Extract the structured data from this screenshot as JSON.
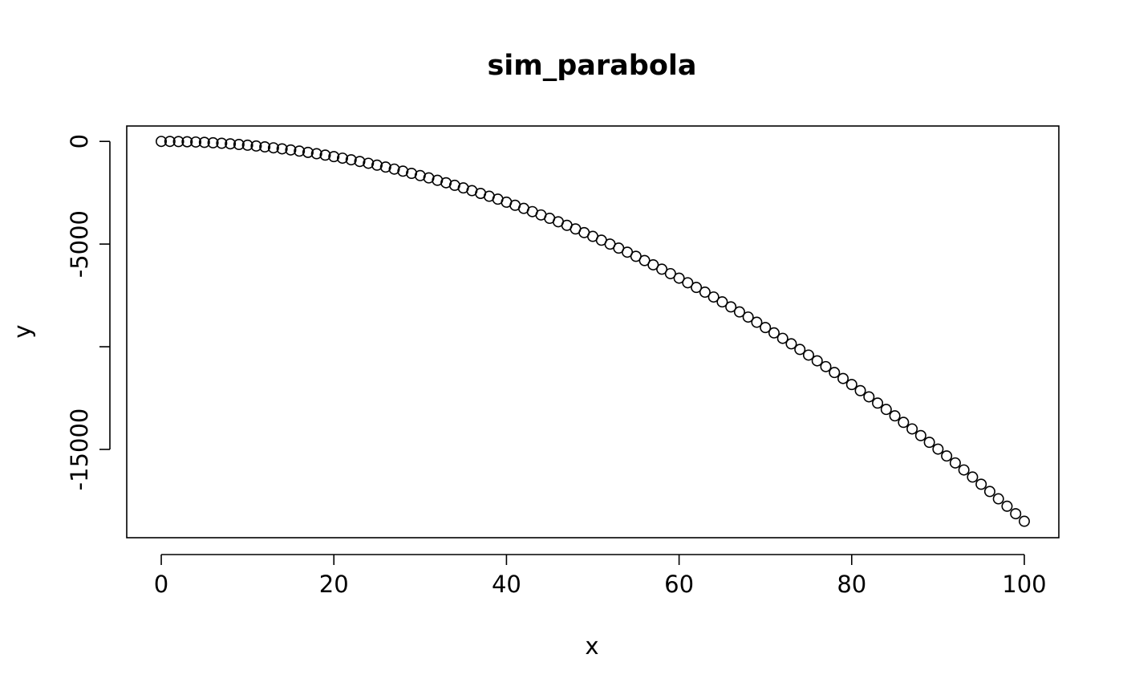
{
  "chart_data": {
    "type": "scatter",
    "title": "sim_parabola",
    "xlabel": "x",
    "ylabel": "y",
    "xlim": [
      -4,
      104
    ],
    "ylim": [
      -19300,
      750
    ],
    "xticks": [
      0,
      20,
      40,
      60,
      80,
      100
    ],
    "xtick_labels": [
      "0",
      "20",
      "40",
      "60",
      "80",
      "100"
    ],
    "yticks": [
      0,
      -5000,
      -10000,
      -15000
    ],
    "ytick_labels": [
      "0",
      "-5000",
      "",
      "-15000"
    ],
    "grid": false,
    "marker": "open-circle",
    "marker_color": "#000000",
    "series": [
      {
        "x": [
          0,
          1,
          2,
          3,
          4,
          5,
          6,
          7,
          8,
          9,
          10,
          11,
          12,
          13,
          14,
          15,
          16,
          17,
          18,
          19,
          20,
          21,
          22,
          23,
          24,
          25,
          26,
          27,
          28,
          29,
          30,
          31,
          32,
          33,
          34,
          35,
          36,
          37,
          38,
          39,
          40,
          41,
          42,
          43,
          44,
          45,
          46,
          47,
          48,
          49,
          50,
          51,
          52,
          53,
          54,
          55,
          56,
          57,
          58,
          59,
          60,
          61,
          62,
          63,
          64,
          65,
          66,
          67,
          68,
          69,
          70,
          71,
          72,
          73,
          74,
          75,
          76,
          77,
          78,
          79,
          80,
          81,
          82,
          83,
          84,
          85,
          86,
          87,
          88,
          89,
          90,
          91,
          92,
          93,
          94,
          95,
          96,
          97,
          98,
          99,
          100
        ],
        "y": [
          0,
          -1.85,
          -7.4,
          -16.65,
          -29.6,
          -46.25,
          -66.6,
          -90.65,
          -118.4,
          -149.85,
          -185,
          -223.85,
          -266.4,
          -312.65,
          -362.6,
          -416.25,
          -473.6,
          -534.65,
          -599.4,
          -667.85,
          -740,
          -815.85,
          -895.4,
          -978.65,
          -1065.6,
          -1156.25,
          -1250.6,
          -1348.65,
          -1450.4,
          -1555.85,
          -1665,
          -1777.85,
          -1894.4,
          -2014.65,
          -2138.6,
          -2266.25,
          -2397.6,
          -2532.65,
          -2671.4,
          -2813.85,
          -2960,
          -3109.85,
          -3263.4,
          -3420.65,
          -3581.6,
          -3746.25,
          -3914.6,
          -4086.65,
          -4262.4,
          -4441.85,
          -4625,
          -4811.85,
          -5002.4,
          -5196.65,
          -5394.6,
          -5596.25,
          -5801.6,
          -6010.65,
          -6223.4,
          -6439.85,
          -6660,
          -6883.85,
          -7111.4,
          -7342.65,
          -7577.6,
          -7816.25,
          -8058.6,
          -8304.65,
          -8554.4,
          -8807.85,
          -9065,
          -9325.85,
          -9590.4,
          -9858.65,
          -10130.6,
          -10406.25,
          -10685.6,
          -10968.65,
          -11255.4,
          -11545.85,
          -11840,
          -12137.85,
          -12439.4,
          -12744.65,
          -13053.6,
          -13366.25,
          -13682.6,
          -14002.65,
          -14326.4,
          -14653.85,
          -14985,
          -15319.85,
          -15658.4,
          -16000.65,
          -16346.6,
          -16696.25,
          -17049.6,
          -17406.65,
          -17767.4,
          -18131.85,
          -18500
        ]
      }
    ]
  }
}
